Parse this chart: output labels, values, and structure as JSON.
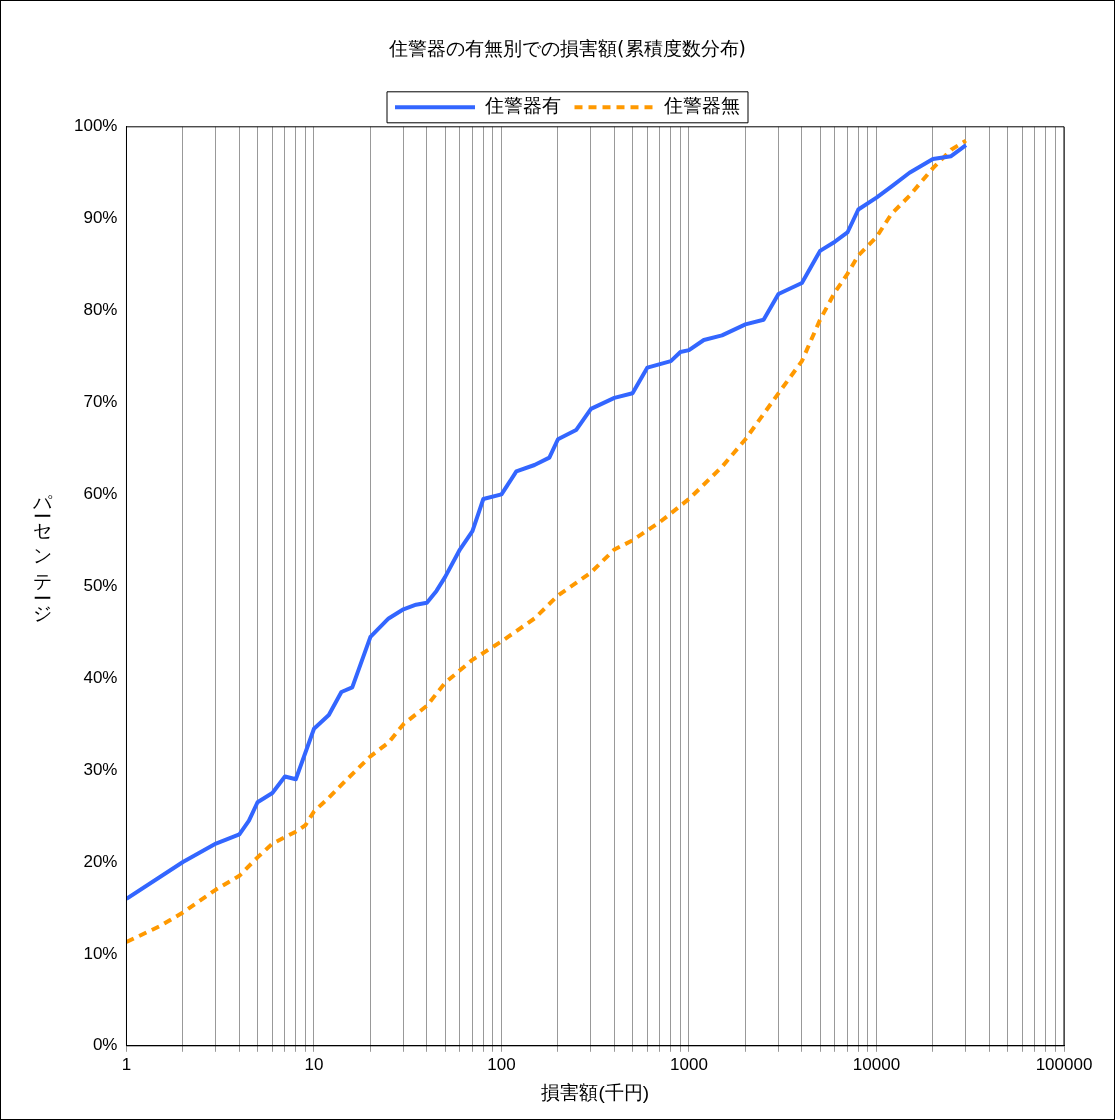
{
  "chart_data": {
    "type": "line",
    "title": "住警器の有無別での損害額(累積度数分布)",
    "xlabel": "損害額(千円)",
    "ylabel": "パーセンテージ",
    "log": "x",
    "grid": "x",
    "legend": "top",
    "marker": "none",
    "xlim": [
      1,
      100000
    ],
    "xticks": [
      1,
      {
        "value": 2,
        "label": null
      },
      {
        "value": 3,
        "label": null
      },
      {
        "value": 4,
        "label": null
      },
      {
        "value": 5,
        "label": null
      },
      {
        "value": 6,
        "label": null
      },
      {
        "value": 7,
        "label": null
      },
      {
        "value": 8,
        "label": null
      },
      {
        "value": 9,
        "label": null
      },
      10,
      {
        "value": 20,
        "label": null
      },
      {
        "value": 30,
        "label": null
      },
      {
        "value": 40,
        "label": null
      },
      {
        "value": 50,
        "label": null
      },
      {
        "value": 60,
        "label": null
      },
      {
        "value": 70,
        "label": null
      },
      {
        "value": 80,
        "label": null
      },
      {
        "value": 90,
        "label": null
      },
      100,
      {
        "value": 200,
        "label": null
      },
      {
        "value": 300,
        "label": null
      },
      {
        "value": 400,
        "label": null
      },
      {
        "value": 500,
        "label": null
      },
      {
        "value": 600,
        "label": null
      },
      {
        "value": 700,
        "label": null
      },
      {
        "value": 800,
        "label": null
      },
      {
        "value": 900,
        "label": null
      },
      1000,
      {
        "value": 2000,
        "label": null
      },
      {
        "value": 3000,
        "label": null
      },
      {
        "value": 4000,
        "label": null
      },
      {
        "value": 5000,
        "label": null
      },
      {
        "value": 6000,
        "label": null
      },
      {
        "value": 7000,
        "label": null
      },
      {
        "value": 8000,
        "label": null
      },
      {
        "value": 9000,
        "label": null
      },
      10000,
      {
        "value": 20000,
        "label": null
      },
      {
        "value": 30000,
        "label": null
      },
      {
        "value": 40000,
        "label": null
      },
      {
        "value": 50000,
        "label": null
      },
      {
        "value": 60000,
        "label": null
      },
      {
        "value": 70000,
        "label": null
      },
      {
        "value": 80000,
        "label": null
      },
      {
        "value": 90000,
        "label": null
      },
      100000
    ],
    "ylim": [
      0,
      100
    ],
    "yticks": [
      {
        "value": 0,
        "label": "0%"
      },
      {
        "value": 10,
        "label": "10%"
      },
      {
        "value": 20,
        "label": "20%"
      },
      {
        "value": 30,
        "label": "30%"
      },
      {
        "value": 40,
        "label": "40%"
      },
      {
        "value": 50,
        "label": "50%"
      },
      {
        "value": 60,
        "label": "60%"
      },
      {
        "value": 70,
        "label": "70%"
      },
      {
        "value": 80,
        "label": "80%"
      },
      {
        "value": 90,
        "label": "90%"
      },
      {
        "value": 100,
        "label": "100%"
      }
    ],
    "series": [
      {
        "name": "住警器有",
        "color": "#3366ff",
        "line_style": "solid",
        "x": [
          1,
          2,
          3,
          4,
          4.5,
          5,
          6,
          7,
          8,
          10,
          12,
          14,
          16,
          20,
          25,
          30,
          35,
          40,
          45,
          50,
          60,
          70,
          80,
          100,
          120,
          150,
          180,
          200,
          250,
          300,
          400,
          500,
          600,
          800,
          900,
          1000,
          1200,
          1500,
          2000,
          2500,
          3000,
          4000,
          5000,
          6000,
          7000,
          8000,
          10000,
          12000,
          15000,
          20000,
          25000,
          30000
        ],
        "values": [
          16,
          20,
          22,
          23,
          24.5,
          26.5,
          27.5,
          29.3,
          29,
          34.5,
          36,
          38.5,
          39,
          44.5,
          46.5,
          47.5,
          48,
          48.2,
          49.5,
          51,
          54,
          56,
          59.5,
          60,
          62.5,
          63.2,
          64,
          66,
          67,
          69.3,
          70.5,
          71,
          73.8,
          74.5,
          75.5,
          75.7,
          76.8,
          77.3,
          78.5,
          79,
          81.8,
          83,
          86.5,
          87.5,
          88.5,
          91,
          92.3,
          93.5,
          95,
          96.5,
          96.8,
          98
        ]
      },
      {
        "name": "住警器無",
        "color": "#ff9900",
        "line_style": "dashed",
        "x": [
          1,
          1.5,
          2,
          3,
          4,
          5,
          6,
          8,
          9,
          10,
          12,
          15,
          20,
          25,
          30,
          40,
          50,
          70,
          100,
          150,
          200,
          300,
          400,
          500,
          700,
          1000,
          1500,
          2000,
          3000,
          4000,
          5000,
          6000,
          7000,
          8000,
          10000,
          12000,
          15000,
          20000,
          25000,
          30000
        ],
        "values": [
          11.3,
          13,
          14.5,
          17,
          18.5,
          20.5,
          22,
          23.3,
          24,
          25.5,
          27,
          29,
          31.5,
          33,
          35,
          37,
          39.5,
          42,
          44,
          46.5,
          49,
          51.5,
          54,
          55,
          57,
          59.5,
          63,
          66,
          71,
          74.5,
          79,
          82,
          84,
          86,
          88,
          90.5,
          92.5,
          95.5,
          97.5,
          98.5
        ]
      }
    ]
  }
}
